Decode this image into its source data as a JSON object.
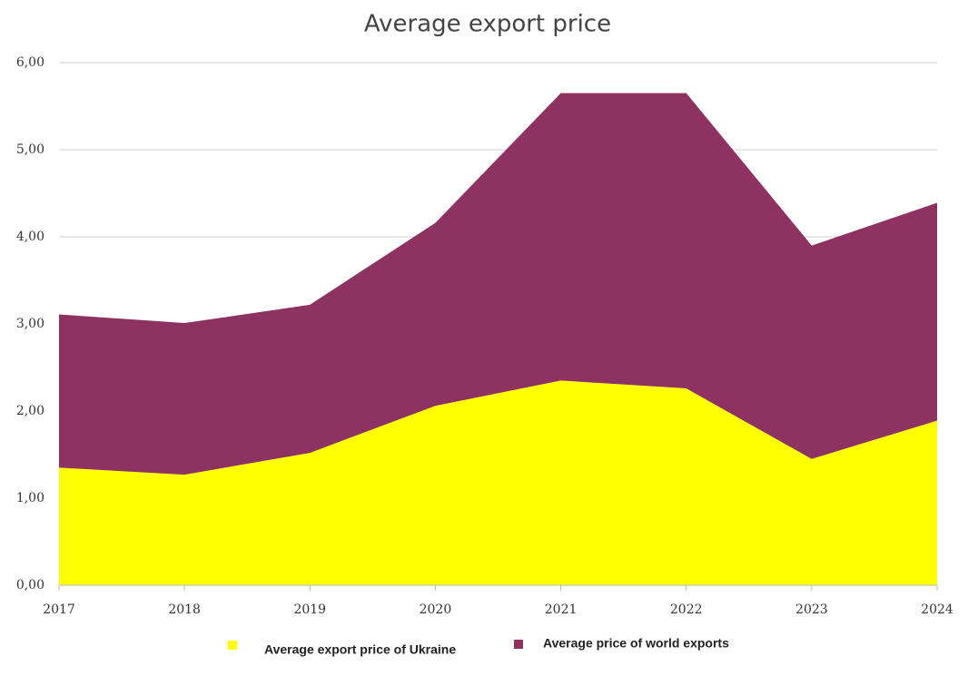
{
  "chart_data": {
    "type": "stacked_area",
    "title": "Average export price",
    "categories": [
      "2017",
      "2018",
      "2019",
      "2020",
      "2021",
      "2022",
      "2023",
      "2024"
    ],
    "series": [
      {
        "name": "Average export price of Ukraine",
        "color": "#ffff00",
        "values": [
          1.35,
          1.27,
          1.52,
          2.06,
          2.35,
          2.26,
          1.45,
          1.89
        ]
      },
      {
        "name": "Average price of world exports",
        "color": "#8e3361",
        "values": [
          1.76,
          1.74,
          1.7,
          2.1,
          3.3,
          3.39,
          2.45,
          2.5
        ]
      }
    ],
    "ylim": [
      0,
      6
    ],
    "yticks": [
      {
        "value": 0,
        "label": "0,00"
      },
      {
        "value": 1,
        "label": "1,00"
      },
      {
        "value": 2,
        "label": "2,00"
      },
      {
        "value": 3,
        "label": "3,00"
      },
      {
        "value": 4,
        "label": "4,00"
      },
      {
        "value": 5,
        "label": "5,00"
      },
      {
        "value": 6,
        "label": "6,00"
      }
    ],
    "grid": true,
    "legend": "bottom"
  }
}
